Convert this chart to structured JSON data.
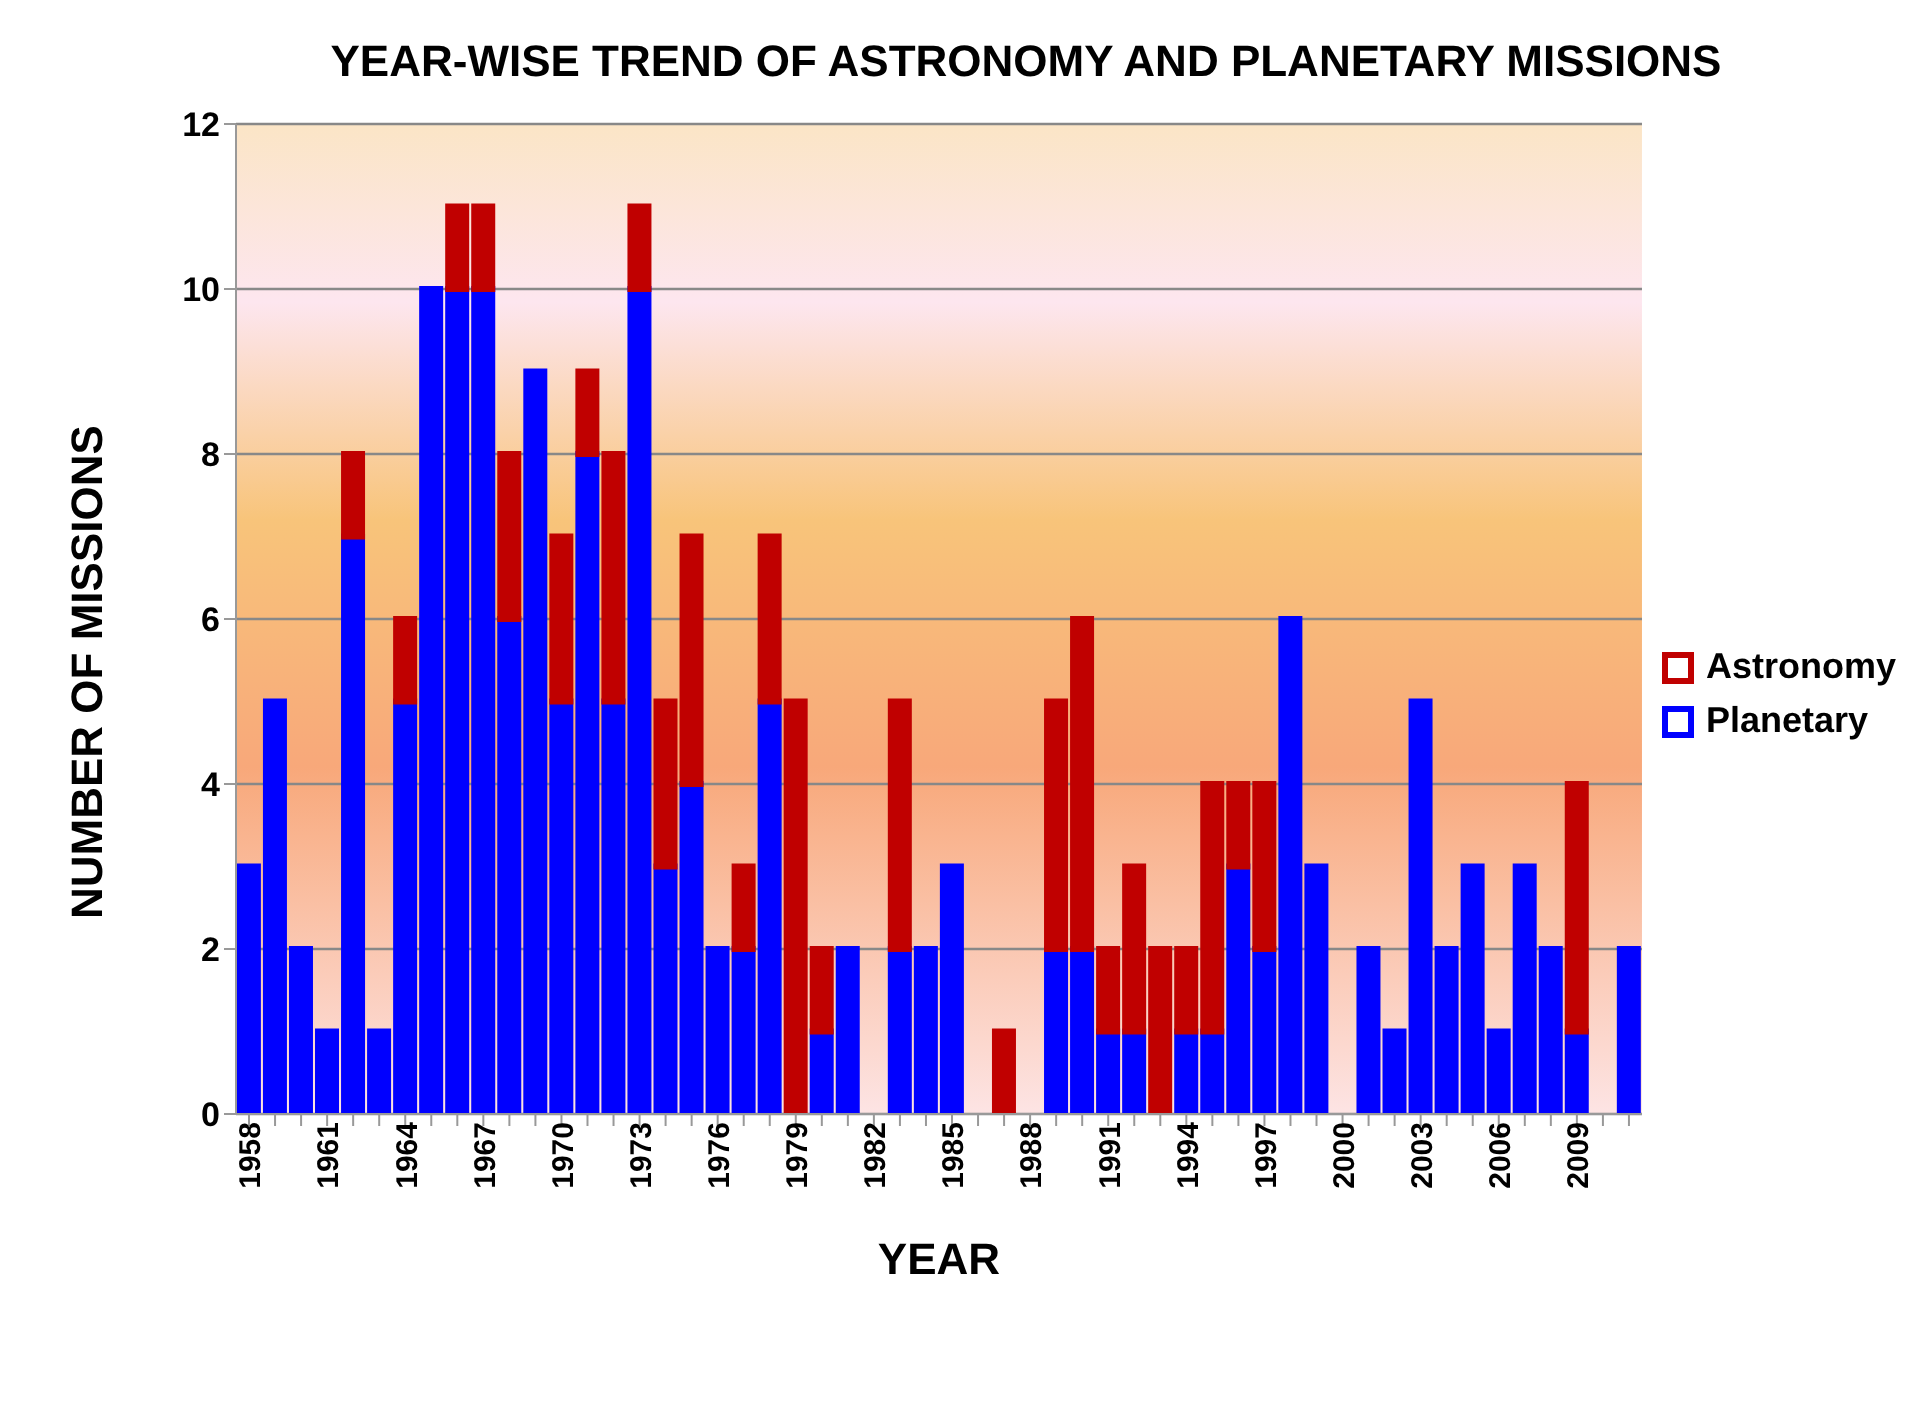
{
  "chart_data": {
    "type": "bar",
    "title": "YEAR-WISE TREND OF ASTRONOMY AND PLANETARY MISSIONS",
    "xlabel": "YEAR",
    "ylabel": "NUMBER OF MISSIONS",
    "categories": [
      "1958",
      null,
      null,
      "1961",
      null,
      null,
      "1964",
      null,
      null,
      "1967",
      null,
      null,
      "1970",
      null,
      null,
      "1973",
      null,
      null,
      "1976",
      null,
      null,
      "1979",
      null,
      null,
      "1982",
      null,
      null,
      "1985",
      null,
      null,
      "1988",
      null,
      null,
      "1991",
      null,
      null,
      "1994",
      null,
      null,
      "1997",
      null,
      null,
      "2000",
      null,
      null,
      "2003",
      null,
      null,
      "2006",
      null,
      null,
      "2009",
      null,
      null
    ],
    "stacked": true,
    "series": [
      {
        "name": "Planetary",
        "color": "#0000ff",
        "values": [
          3,
          5,
          2,
          1,
          7,
          1,
          5,
          10,
          10,
          10,
          6,
          9,
          5,
          8,
          5,
          10,
          3,
          4,
          2,
          2,
          5,
          0,
          1,
          2,
          0,
          2,
          2,
          3,
          0,
          0,
          0,
          2,
          2,
          1,
          1,
          0,
          1,
          1,
          3,
          2,
          6,
          3,
          0,
          2,
          1,
          5,
          2,
          3,
          1,
          3,
          2,
          1,
          0,
          2
        ]
      },
      {
        "name": "Astronomy",
        "color": "#c00000",
        "values": [
          0,
          0,
          0,
          0,
          1,
          0,
          1,
          0,
          1,
          1,
          2,
          0,
          2,
          1,
          3,
          1,
          2,
          3,
          0,
          1,
          2,
          5,
          1,
          0,
          0,
          3,
          0,
          0,
          0,
          1,
          0,
          3,
          4,
          1,
          2,
          2,
          1,
          3,
          1,
          2,
          0,
          0,
          0,
          0,
          0,
          0,
          0,
          0,
          0,
          0,
          0,
          3,
          0,
          0
        ]
      }
    ],
    "ylim": [
      0,
      12
    ],
    "yticks": [
      0,
      2,
      4,
      6,
      8,
      10,
      12
    ],
    "grid": "y",
    "legend": "right"
  }
}
